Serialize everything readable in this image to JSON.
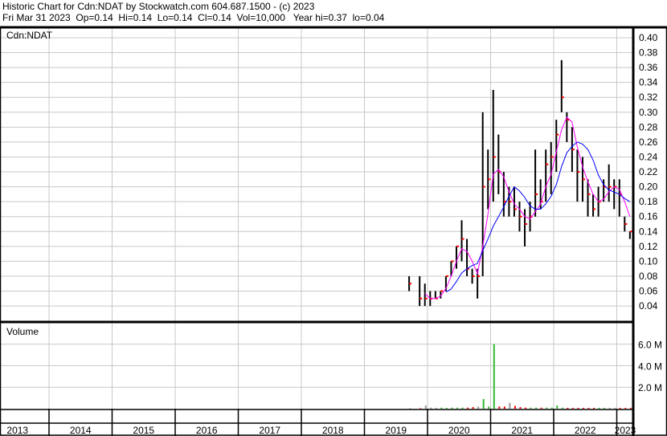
{
  "header": {
    "title": "Historic Chart for Cdn:NDAT by Stockwatch.com 604.687.1500 - (c) 2023",
    "quote": "Fri Mar 31 2023  Op=0.14  Hi=0.14  Lo=0.14  Cl=0.14  Vol=10,000   Year hi=0.37  lo=0.04"
  },
  "chart_data": [
    {
      "type": "bar",
      "title": "Cdn:NDAT",
      "ylim": [
        0.03,
        0.41
      ],
      "yticks": [
        "0.04",
        "0.06",
        "0.08",
        "0.10",
        "0.12",
        "0.14",
        "0.16",
        "0.18",
        "0.20",
        "0.22",
        "0.24",
        "0.26",
        "0.28",
        "0.30",
        "0.32",
        "0.34",
        "0.36",
        "0.38",
        "0.40"
      ],
      "xticks": [
        "2013",
        "2014",
        "2015",
        "2016",
        "2017",
        "2018",
        "2019",
        "2020",
        "2021",
        "2022",
        "2023"
      ],
      "grid": true,
      "colors": {
        "bar": "#000000",
        "close": "#ff0000",
        "ma_short": "#ff00ff",
        "ma_long": "#0000ff"
      },
      "series": [
        [
          "2019-09",
          0.08,
          0.06,
          0.07
        ],
        [
          "2019-11",
          0.08,
          0.04,
          0.05
        ],
        [
          "2019-12",
          0.07,
          0.04,
          0.05
        ],
        [
          "2020-01",
          0.06,
          0.04,
          0.05
        ],
        [
          "2020-02",
          0.06,
          0.05,
          0.05
        ],
        [
          "2020-03",
          0.06,
          0.05,
          0.06
        ],
        [
          "2020-04",
          0.08,
          0.06,
          0.08
        ],
        [
          "2020-05",
          0.1,
          0.08,
          0.1
        ],
        [
          "2020-06",
          0.12,
          0.09,
          0.12
        ],
        [
          "2020-07",
          0.155,
          0.1,
          0.13
        ],
        [
          "2020-08",
          0.13,
          0.08,
          0.09
        ],
        [
          "2020-09",
          0.09,
          0.07,
          0.08
        ],
        [
          "2020-10",
          0.09,
          0.05,
          0.08
        ],
        [
          "2020-11",
          0.3,
          0.08,
          0.2
        ],
        [
          "2020-12",
          0.25,
          0.17,
          0.21
        ],
        [
          "2021-01",
          0.33,
          0.18,
          0.24
        ],
        [
          "2021-02",
          0.27,
          0.19,
          0.22
        ],
        [
          "2021-03",
          0.22,
          0.16,
          0.18
        ],
        [
          "2021-04",
          0.2,
          0.16,
          0.18
        ],
        [
          "2021-05",
          0.2,
          0.16,
          0.17
        ],
        [
          "2021-06",
          0.18,
          0.14,
          0.16
        ],
        [
          "2021-07",
          0.17,
          0.12,
          0.15
        ],
        [
          "2021-08",
          0.18,
          0.14,
          0.16
        ],
        [
          "2021-09",
          0.25,
          0.16,
          0.19
        ],
        [
          "2021-10",
          0.21,
          0.17,
          0.18
        ],
        [
          "2021-11",
          0.25,
          0.18,
          0.23
        ],
        [
          "2021-12",
          0.26,
          0.19,
          0.24
        ],
        [
          "2022-01",
          0.29,
          0.22,
          0.27
        ],
        [
          "2022-02",
          0.37,
          0.3,
          0.32
        ],
        [
          "2022-03",
          0.3,
          0.26,
          0.29
        ],
        [
          "2022-04",
          0.28,
          0.22,
          0.25
        ],
        [
          "2022-05",
          0.25,
          0.18,
          0.22
        ],
        [
          "2022-06",
          0.24,
          0.18,
          0.21
        ],
        [
          "2022-07",
          0.21,
          0.16,
          0.19
        ],
        [
          "2022-08",
          0.19,
          0.16,
          0.17
        ],
        [
          "2022-09",
          0.2,
          0.16,
          0.18
        ],
        [
          "2022-10",
          0.21,
          0.18,
          0.2
        ],
        [
          "2022-11",
          0.23,
          0.18,
          0.2
        ],
        [
          "2022-12",
          0.21,
          0.17,
          0.2
        ],
        [
          "2023-01",
          0.21,
          0.16,
          0.19
        ],
        [
          "2023-02",
          0.16,
          0.14,
          0.15
        ],
        [
          "2023-03",
          0.14,
          0.13,
          0.14
        ]
      ],
      "series_fields": [
        "date",
        "high",
        "low",
        "close"
      ]
    },
    {
      "type": "bar",
      "title": "Volume",
      "ylim": [
        0,
        6.5
      ],
      "yticks": [
        "2.0 M",
        "4.0 M",
        "6.0 M"
      ],
      "grid": true,
      "colors": {
        "up": "#33bb33",
        "down": "#ff0000",
        "flat": "#999999"
      },
      "volume_millions": [
        [
          "2019-09",
          0.05
        ],
        [
          "2019-11",
          0.05
        ],
        [
          "2019-12",
          0.3
        ],
        [
          "2020-01",
          0.1
        ],
        [
          "2020-02",
          0.08
        ],
        [
          "2020-03",
          0.1
        ],
        [
          "2020-04",
          0.08
        ],
        [
          "2020-05",
          0.1
        ],
        [
          "2020-06",
          0.1
        ],
        [
          "2020-07",
          0.1
        ],
        [
          "2020-08",
          0.1
        ],
        [
          "2020-09",
          0.15
        ],
        [
          "2020-10",
          0.2
        ],
        [
          "2020-11",
          0.9
        ],
        [
          "2020-12",
          0.2
        ],
        [
          "2021-01",
          6.0
        ],
        [
          "2021-02",
          0.2
        ],
        [
          "2021-03",
          0.2
        ],
        [
          "2021-04",
          0.55
        ],
        [
          "2021-05",
          0.25
        ],
        [
          "2021-06",
          0.15
        ],
        [
          "2021-07",
          0.1
        ],
        [
          "2021-08",
          0.1
        ],
        [
          "2021-09",
          0.1
        ],
        [
          "2021-10",
          0.1
        ],
        [
          "2021-11",
          0.1
        ],
        [
          "2021-12",
          0.1
        ],
        [
          "2022-01",
          0.3
        ],
        [
          "2022-02",
          0.1
        ],
        [
          "2022-03",
          0.08
        ],
        [
          "2022-04",
          0.08
        ],
        [
          "2022-05",
          0.08
        ],
        [
          "2022-06",
          0.08
        ],
        [
          "2022-07",
          0.08
        ],
        [
          "2022-08",
          0.08
        ],
        [
          "2022-09",
          0.08
        ],
        [
          "2022-10",
          0.08
        ],
        [
          "2022-11",
          0.08
        ],
        [
          "2022-12",
          0.08
        ],
        [
          "2023-01",
          0.08
        ],
        [
          "2023-02",
          0.08
        ],
        [
          "2023-03",
          0.08
        ]
      ]
    }
  ]
}
